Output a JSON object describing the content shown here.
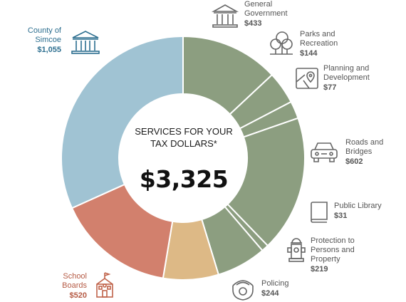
{
  "center": {
    "title": "SERVICES FOR YOUR TAX DOLLARS*",
    "total": "$3,325"
  },
  "colors": {
    "county": "#a0c3d3",
    "school": "#d2806d",
    "policing": "#ddb986",
    "municipal": "#8c9e80",
    "text_county": "#2c6e8f",
    "text_school": "#b55a44",
    "icon_stroke": "#666666"
  },
  "labels": {
    "general_government": {
      "name": "General Government",
      "amount": "$433",
      "icon": "government-building-icon"
    },
    "parks": {
      "name": "Parks and Recreation",
      "amount": "$144",
      "icon": "trees-icon"
    },
    "planning": {
      "name": "Planning and Development",
      "amount": "$77",
      "icon": "map-pin-icon"
    },
    "roads": {
      "name": "Roads and Bridges",
      "amount": "$602",
      "icon": "car-icon"
    },
    "library": {
      "name": "Public Library",
      "amount": "$31",
      "icon": "book-icon"
    },
    "protection": {
      "name": "Protection to Persons and Property",
      "amount": "$219",
      "icon": "fire-hydrant-icon"
    },
    "policing": {
      "name": "Policing",
      "amount": "$244",
      "icon": "police-badge-icon"
    },
    "school_boards": {
      "name": "School Boards",
      "amount": "$520",
      "icon": "school-icon"
    },
    "county": {
      "name": "County of Simcoe",
      "amount": "$1,055",
      "icon": "county-building-icon"
    }
  },
  "chart_data": {
    "type": "pie",
    "title": "SERVICES FOR YOUR TAX DOLLARS*",
    "total": 3325,
    "slices": [
      {
        "label": "General Government",
        "value": 433,
        "color": "#8c9e80"
      },
      {
        "label": "Parks and Recreation",
        "value": 144,
        "color": "#8c9e80"
      },
      {
        "label": "Planning and Development",
        "value": 77,
        "color": "#8c9e80"
      },
      {
        "label": "Roads and Bridges",
        "value": 602,
        "color": "#8c9e80"
      },
      {
        "label": "Public Library",
        "value": 31,
        "color": "#8c9e80"
      },
      {
        "label": "Protection to Persons and Property",
        "value": 219,
        "color": "#8c9e80"
      },
      {
        "label": "Policing",
        "value": 244,
        "color": "#ddb986"
      },
      {
        "label": "School Boards",
        "value": 520,
        "color": "#d2806d"
      },
      {
        "label": "County of Simcoe",
        "value": 1055,
        "color": "#a0c3d3"
      }
    ]
  }
}
